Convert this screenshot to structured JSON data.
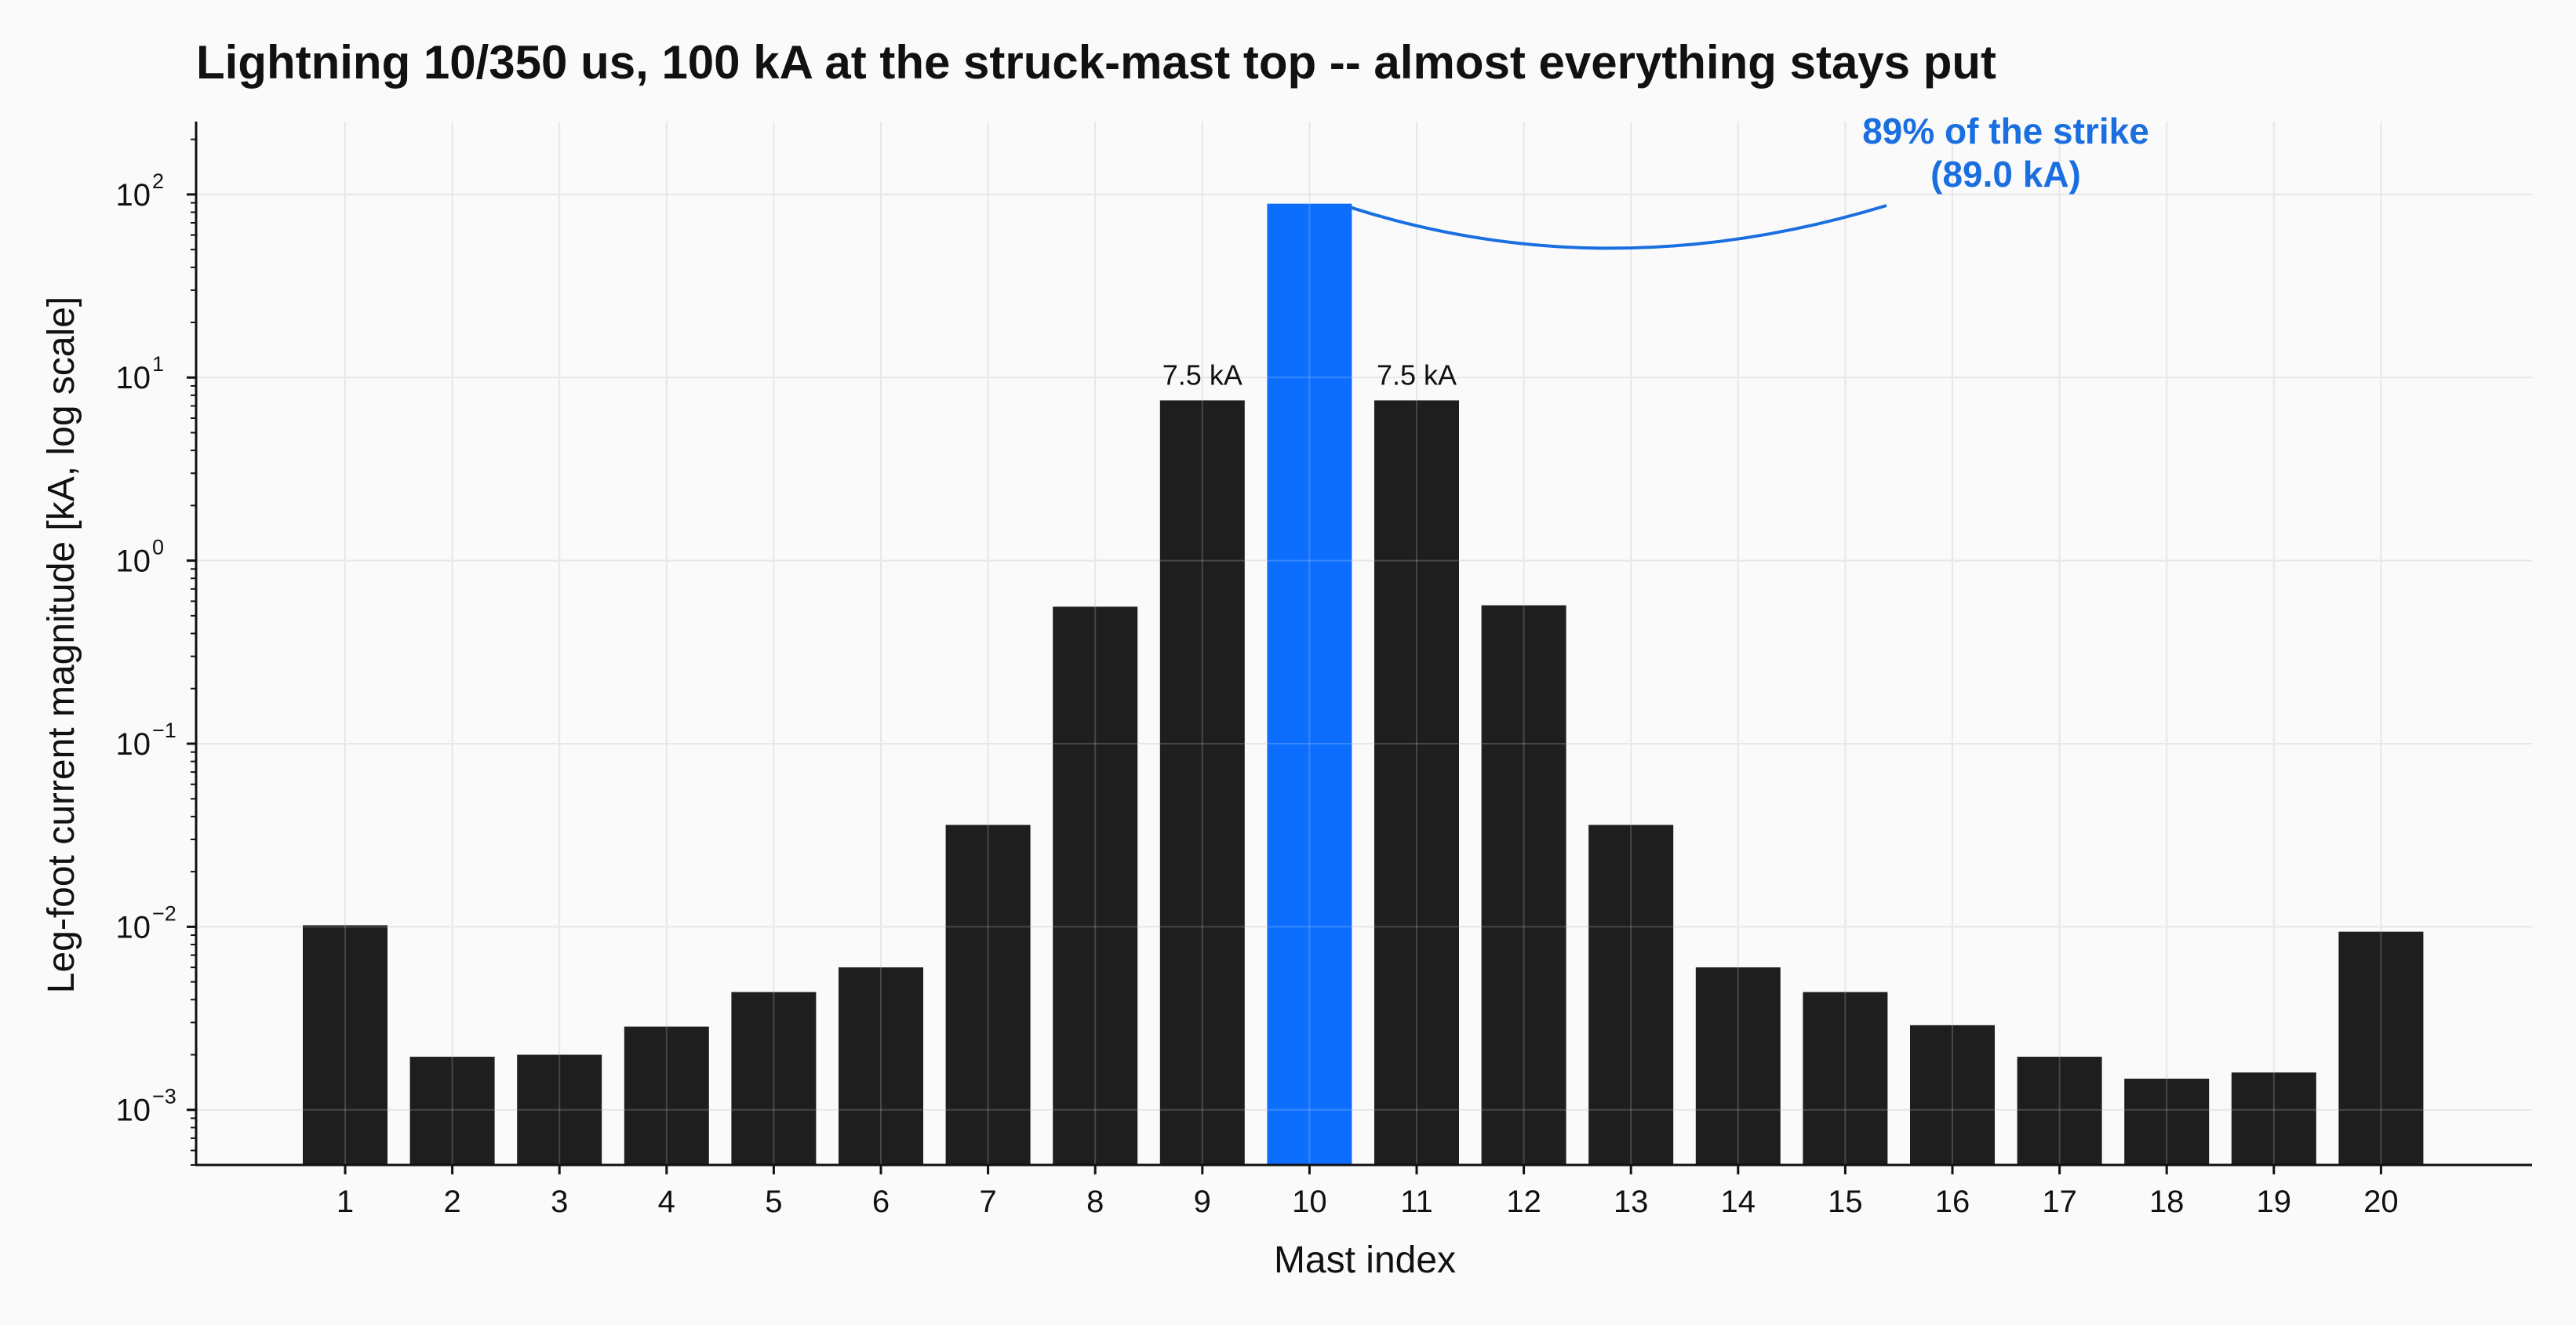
{
  "chart_data": {
    "type": "bar",
    "title": "Lightning 10/350 us, 100 kA at the struck-mast top -- almost everything stays put",
    "xlabel": "Mast index",
    "ylabel": "Leg-foot current magnitude  [kA, log scale]",
    "yscale": "log",
    "ylim": [
      0.0005,
      250
    ],
    "yticks": [
      {
        "base": "10",
        "exp": "−3",
        "value": 0.001
      },
      {
        "base": "10",
        "exp": "−2",
        "value": 0.01
      },
      {
        "base": "10",
        "exp": "−1",
        "value": 0.1
      },
      {
        "base": "10",
        "exp": "0",
        "value": 1
      },
      {
        "base": "10",
        "exp": "1",
        "value": 10
      },
      {
        "base": "10",
        "exp": "2",
        "value": 100
      }
    ],
    "categories": [
      "1",
      "2",
      "3",
      "4",
      "5",
      "6",
      "7",
      "8",
      "9",
      "10",
      "11",
      "12",
      "13",
      "14",
      "15",
      "16",
      "17",
      "18",
      "19",
      "20"
    ],
    "values": [
      0.0102,
      0.00195,
      0.002,
      0.00285,
      0.0044,
      0.006,
      0.036,
      0.56,
      7.5,
      89.0,
      7.5,
      0.57,
      0.036,
      0.006,
      0.0044,
      0.0029,
      0.00195,
      0.00148,
      0.0016,
      0.0094
    ],
    "highlight_index": 9,
    "data_labels": [
      {
        "index": 8,
        "text": "7.5 kA"
      },
      {
        "index": 10,
        "text": "7.5 kA"
      }
    ],
    "annotation": {
      "target_index": 9,
      "line1": "89% of the strike",
      "line2": "(89.0 kA)"
    },
    "grid": true,
    "colors": {
      "bar": "#1e1e1e",
      "highlight": "#0d6efd",
      "annotation": "#1a6fe0",
      "grid": "#e2e2e2",
      "background": "#fafafa"
    }
  }
}
